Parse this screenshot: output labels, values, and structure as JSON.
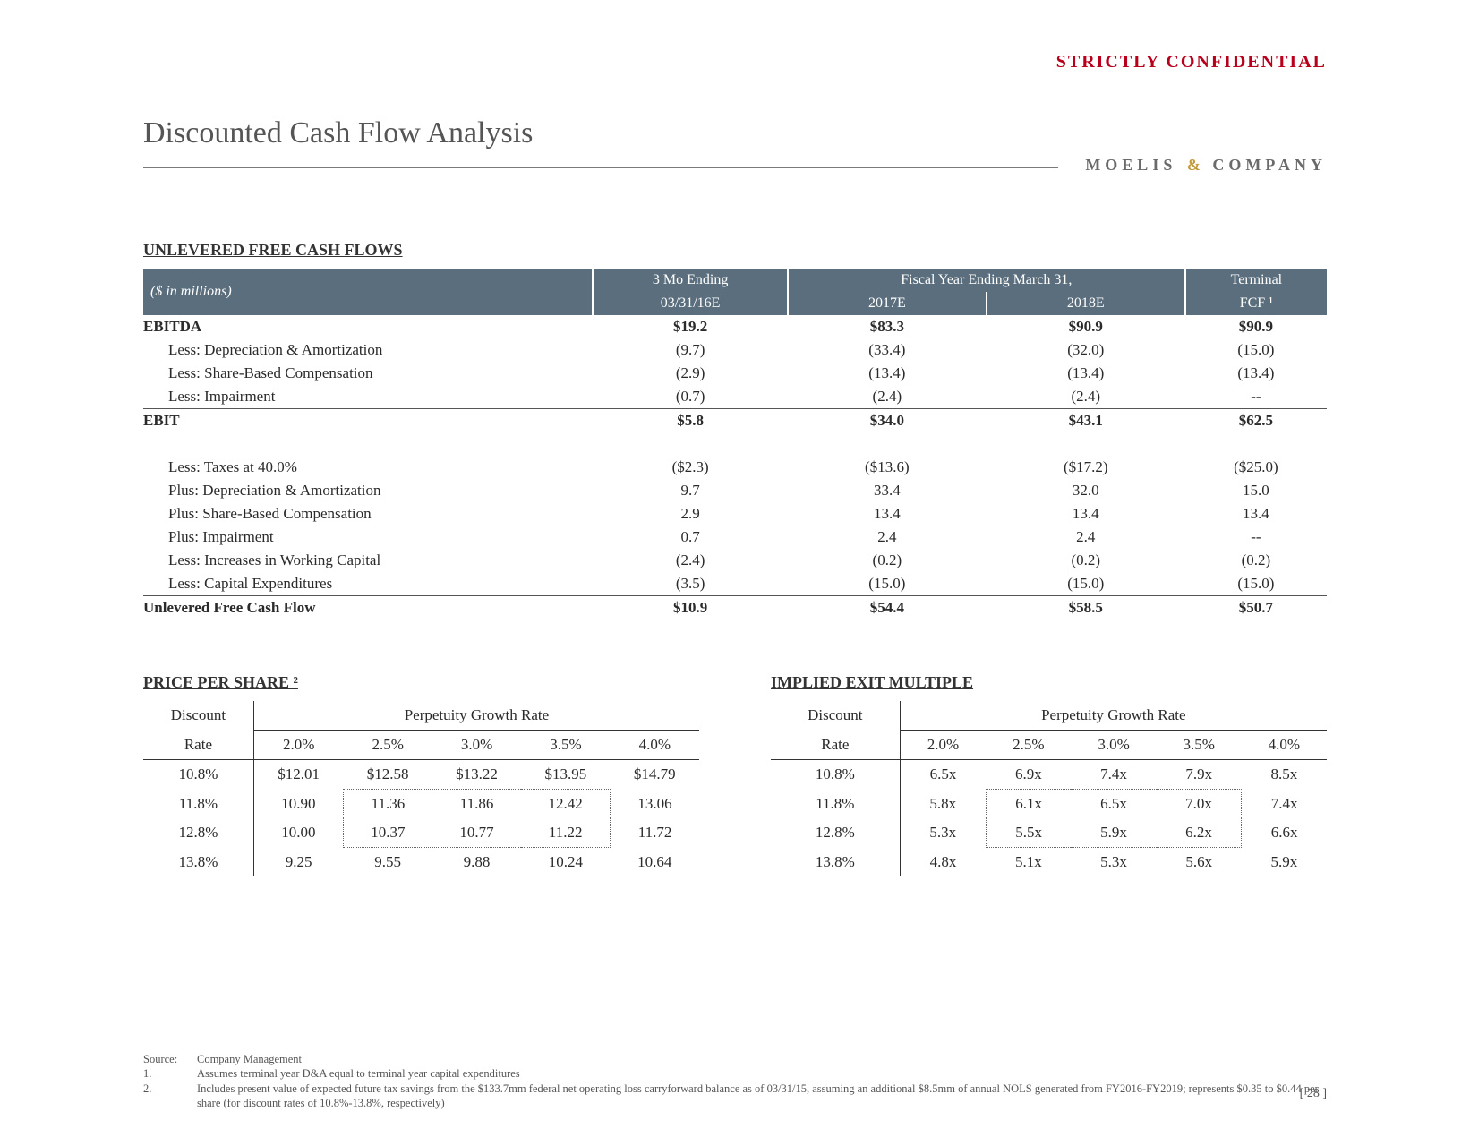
{
  "header": {
    "confidential": "STRICTLY CONFIDENTIAL",
    "title": "Discounted Cash Flow Analysis",
    "brand_left": "MOELIS",
    "brand_amp": "&",
    "brand_right": "COMPANY"
  },
  "cashflow": {
    "section_label": "UNLEVERED FREE CASH FLOWS",
    "units": "($ in millions)",
    "col_group_a": "3 Mo Ending",
    "col_group_b": "Fiscal Year Ending March 31,",
    "col_group_c": "Terminal",
    "col_a": "03/31/16E",
    "col_b1": "2017E",
    "col_b2": "2018E",
    "col_c": "FCF ¹",
    "rows": [
      {
        "label": "EBITDA",
        "indent": false,
        "bold": true,
        "topline": false,
        "c1": "$19.2",
        "c2": "$83.3",
        "c3": "$90.9",
        "c4": "$90.9"
      },
      {
        "label": "Less: Depreciation & Amortization",
        "indent": true,
        "c1": "(9.7)",
        "c2": "(33.4)",
        "c3": "(32.0)",
        "c4": "(15.0)"
      },
      {
        "label": "Less: Share-Based Compensation",
        "indent": true,
        "c1": "(2.9)",
        "c2": "(13.4)",
        "c3": "(13.4)",
        "c4": "(13.4)"
      },
      {
        "label": "Less: Impairment",
        "indent": true,
        "c1": "(0.7)",
        "c2": "(2.4)",
        "c3": "(2.4)",
        "c4": "--"
      },
      {
        "label": "EBIT",
        "indent": false,
        "bold": true,
        "topline": true,
        "c1": "$5.8",
        "c2": "$34.0",
        "c3": "$43.1",
        "c4": "$62.5"
      },
      {
        "spacer": true
      },
      {
        "label": "Less: Taxes at 40.0%",
        "indent": true,
        "c1": "($2.3)",
        "c2": "($13.6)",
        "c3": "($17.2)",
        "c4": "($25.0)"
      },
      {
        "label": "Plus: Depreciation & Amortization",
        "indent": true,
        "c1": "9.7",
        "c2": "33.4",
        "c3": "32.0",
        "c4": "15.0"
      },
      {
        "label": "Plus: Share-Based Compensation",
        "indent": true,
        "c1": "2.9",
        "c2": "13.4",
        "c3": "13.4",
        "c4": "13.4"
      },
      {
        "label": "Plus: Impairment",
        "indent": true,
        "c1": "0.7",
        "c2": "2.4",
        "c3": "2.4",
        "c4": "--"
      },
      {
        "label": "Less: Increases in Working Capital",
        "indent": true,
        "c1": "(2.4)",
        "c2": "(0.2)",
        "c3": "(0.2)",
        "c4": "(0.2)"
      },
      {
        "label": "Less: Capital Expenditures",
        "indent": true,
        "c1": "(3.5)",
        "c2": "(15.0)",
        "c3": "(15.0)",
        "c4": "(15.0)"
      },
      {
        "label": "Unlevered Free Cash Flow",
        "indent": false,
        "bold": true,
        "topline": true,
        "c1": "$10.9",
        "c2": "$54.4",
        "c3": "$58.5",
        "c4": "$50.7"
      }
    ]
  },
  "price_per_share": {
    "section_label": "PRICE PER SHARE ²",
    "axis_top": "Perpetuity Growth Rate",
    "axis_left_1": "Discount",
    "axis_left_2": "Rate",
    "col_headers": [
      "2.0%",
      "2.5%",
      "3.0%",
      "3.5%",
      "4.0%"
    ],
    "row_headers": [
      "10.8%",
      "11.8%",
      "12.8%",
      "13.8%"
    ],
    "cells": [
      [
        "$12.01",
        "$12.58",
        "$13.22",
        "$13.95",
        "$14.79"
      ],
      [
        "10.90",
        "11.36",
        "11.86",
        "12.42",
        "13.06"
      ],
      [
        "10.00",
        "10.37",
        "10.77",
        "11.22",
        "11.72"
      ],
      [
        "9.25",
        "9.55",
        "9.88",
        "10.24",
        "10.64"
      ]
    ]
  },
  "implied_multiple": {
    "section_label": "IMPLIED EXIT MULTIPLE",
    "axis_top": "Perpetuity Growth Rate",
    "axis_left_1": "Discount",
    "axis_left_2": "Rate",
    "col_headers": [
      "2.0%",
      "2.5%",
      "3.0%",
      "3.5%",
      "4.0%"
    ],
    "row_headers": [
      "10.8%",
      "11.8%",
      "12.8%",
      "13.8%"
    ],
    "cells": [
      [
        "6.5x",
        "6.9x",
        "7.4x",
        "7.9x",
        "8.5x"
      ],
      [
        "5.8x",
        "6.1x",
        "6.5x",
        "7.0x",
        "7.4x"
      ],
      [
        "5.3x",
        "5.5x",
        "5.9x",
        "6.2x",
        "6.6x"
      ],
      [
        "4.8x",
        "5.1x",
        "5.3x",
        "5.6x",
        "5.9x"
      ]
    ]
  },
  "footnotes": {
    "source_label": "Source:",
    "source_text": "Company Management",
    "n1_label": "1.",
    "n1_text": "Assumes terminal year D&A equal to terminal year capital expenditures",
    "n2_label": "2.",
    "n2_text": "Includes present value of expected future tax savings from the $133.7mm federal net operating loss carryforward balance as of 03/31/15, assuming an additional $8.5mm of annual NOLS generated from FY2016-FY2019; represents $0.35 to $0.44 per share (for discount rates of 10.8%-13.8%, respectively)"
  },
  "page_number": "[ 28 ]",
  "colors": {
    "header_bg": "#5a6e7e",
    "accent_red": "#b8001c",
    "brand_gold": "#c29a3a"
  }
}
